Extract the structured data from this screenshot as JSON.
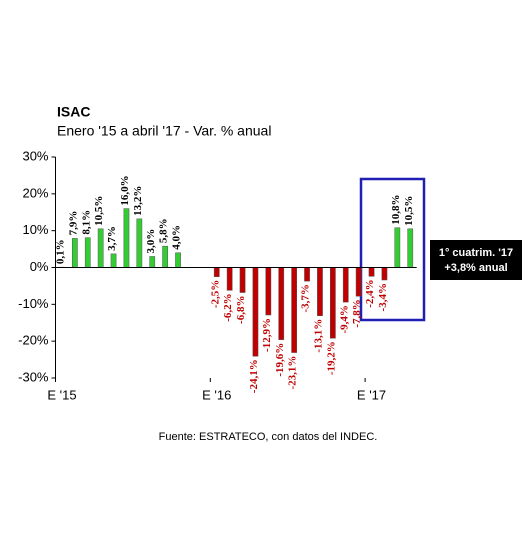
{
  "chart_data": {
    "type": "bar",
    "title": "ISAC",
    "subtitle": "Enero '15 a abril '17 - Var. % anual",
    "categories": [
      "E '15",
      null,
      null,
      null,
      null,
      null,
      null,
      null,
      null,
      null,
      null,
      null,
      "E '16",
      null,
      null,
      null,
      null,
      null,
      null,
      null,
      null,
      null,
      null,
      null,
      "E '17",
      null,
      null,
      null
    ],
    "values": [
      0.1,
      7.9,
      8.1,
      10.5,
      3.7,
      16.0,
      13.2,
      3.0,
      5.8,
      4.0,
      null,
      null,
      -2.5,
      -6.2,
      -6.8,
      -24.1,
      -12.9,
      -19.6,
      -23.1,
      -3.7,
      -13.1,
      -19.2,
      -9.4,
      -7.8,
      -2.4,
      -3.4,
      10.8,
      10.5
    ],
    "value_labels": [
      "0,1%",
      "7,9%",
      "8,1%",
      "10,5%",
      "3,7%",
      "16,0%",
      "13,2%",
      "3,0%",
      "5,8%",
      "4,0%",
      null,
      null,
      "-2,5%",
      "-6,2%",
      "-6,8%",
      "-24,1%",
      "-12,9%",
      "-19,6%",
      "-23,1%",
      "-3,7%",
      "-13,1%",
      "-19,2%",
      "-9,4%",
      "-7,8%",
      "-2,4%",
      "-3,4%",
      "10,8%",
      "10,5%"
    ],
    "positive_color": "#33cc33",
    "negative_color": "#c00000",
    "ylim": [
      -30,
      30
    ],
    "yticks": [
      {
        "value": -30,
        "label": "-30%"
      },
      {
        "value": -20,
        "label": "-20%"
      },
      {
        "value": -10,
        "label": "-10%"
      },
      {
        "value": 0,
        "label": "0%"
      },
      {
        "value": 10,
        "label": "10%"
      },
      {
        "value": 20,
        "label": "20%"
      },
      {
        "value": 30,
        "label": "30%"
      }
    ],
    "annotation": [
      "1° cuatrim. '17",
      "+3,8% anual"
    ],
    "source": "Fuente: ESTRATECO, con datos del INDEC."
  }
}
